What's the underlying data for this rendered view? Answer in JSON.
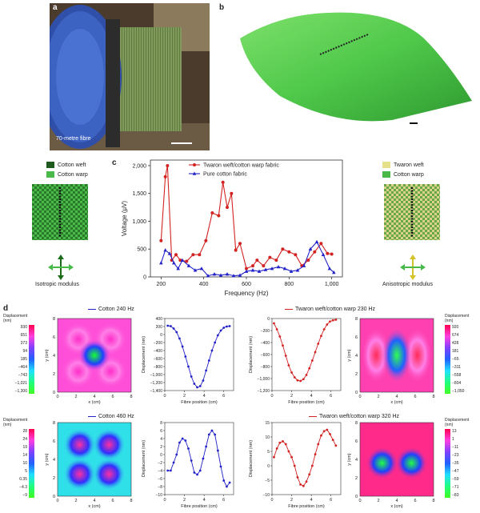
{
  "panels": {
    "a": {
      "label": "a",
      "fibre_length_text": "70-metre fibre"
    },
    "b": {
      "label": "b"
    },
    "c": {
      "label": "c",
      "left_legend": [
        {
          "label": "Cotton weft",
          "color": "#1e5a1e"
        },
        {
          "label": "Cotton warp",
          "color": "#49b94a"
        }
      ],
      "right_legend": [
        {
          "label": "Twaron weft",
          "color": "#e5e08a"
        },
        {
          "label": "Cotton warp",
          "color": "#49b94a"
        }
      ],
      "left_caption": "Isotropic modulus",
      "right_caption": "Anisotropic modulus"
    },
    "d": {
      "label": "d",
      "displacement_label_top": "Displacement",
      "displacement_label_bottom": "(nm)",
      "titles": {
        "cotton240": "Cotton 240 Hz",
        "twaron230": "Twaron weft/cotton warp 230 Hz",
        "cotton460": "Cotton 460 Hz",
        "twaron320": "Twaron weft/cotton warp 320 Hz"
      },
      "colorbars": {
        "tl": [
          "930",
          "651",
          "373",
          "94",
          "185",
          "−464",
          "−743",
          "−1,021",
          "−1,300"
        ],
        "tr": [
          "920",
          "674",
          "428",
          "181",
          "−65",
          "−311",
          "−558",
          "−804",
          "−1,050"
        ],
        "bl": [
          "28",
          "24",
          "19",
          "14",
          "10",
          "5",
          "0.35",
          "−4.3",
          "−9"
        ],
        "br": [
          "13",
          "1",
          "−11",
          "−23",
          "−35",
          "−47",
          "−59",
          "−71",
          "−83"
        ]
      },
      "map_axes": {
        "xlabel": "x (cm)",
        "ylabel": "y (cm)",
        "xticks": [
          "0",
          "2",
          "4",
          "6",
          "8"
        ],
        "yticks": [
          "0",
          "2",
          "4",
          "6",
          "8"
        ]
      },
      "line_axes": {
        "xlabel": "Fibre position (cm)",
        "ylabel": "Displacement (nm)",
        "xticks": [
          "0",
          "2",
          "4",
          "6"
        ]
      }
    }
  },
  "chart_data": [
    {
      "type": "line",
      "xlabel": "Frequency (Hz)",
      "ylabel": "Voltage (μV)",
      "xlim": [
        150,
        1050
      ],
      "ylim": [
        0,
        2100
      ],
      "xticks": [
        200,
        400,
        600,
        800,
        1000
      ],
      "xtick_labels": [
        "200",
        "400",
        "600",
        "800",
        "1,000"
      ],
      "yticks": [
        0,
        500,
        1000,
        1500,
        2000
      ],
      "ytick_labels": [
        "0",
        "500",
        "1,000",
        "1,500",
        "2,000"
      ],
      "legend_position": "top-center",
      "series": [
        {
          "name": "Twaron weft/cotton warp fabric",
          "color": "#d32222",
          "marker": "circle",
          "x": [
            200,
            220,
            230,
            250,
            270,
            290,
            320,
            350,
            380,
            410,
            440,
            470,
            490,
            510,
            530,
            550,
            570,
            600,
            630,
            650,
            680,
            710,
            740,
            770,
            800,
            830,
            860,
            890,
            920,
            950,
            980,
            1000
          ],
          "y": [
            650,
            1800,
            2000,
            300,
            400,
            300,
            280,
            400,
            400,
            650,
            1150,
            1100,
            1700,
            1250,
            1500,
            480,
            600,
            150,
            200,
            300,
            200,
            350,
            300,
            500,
            450,
            400,
            200,
            300,
            450,
            600,
            420,
            410
          ]
        },
        {
          "name": "Pure cotton fabric",
          "color": "#2222c8",
          "marker": "triangle",
          "x": [
            200,
            220,
            240,
            260,
            280,
            300,
            330,
            360,
            390,
            420,
            450,
            480,
            510,
            540,
            570,
            600,
            630,
            660,
            690,
            720,
            750,
            780,
            810,
            840,
            870,
            900,
            930,
            960,
            990,
            1010
          ],
          "y": [
            250,
            480,
            420,
            250,
            150,
            300,
            200,
            120,
            150,
            20,
            50,
            30,
            50,
            20,
            30,
            100,
            120,
            100,
            130,
            150,
            180,
            150,
            100,
            120,
            200,
            500,
            630,
            400,
            150,
            80
          ]
        }
      ]
    },
    {
      "type": "line",
      "title": "Cotton 240 Hz",
      "xlabel": "Fibre position (cm)",
      "ylabel": "Displacement (nm)",
      "xlim": [
        0,
        7
      ],
      "ylim": [
        -1400,
        400
      ],
      "yticks": [
        400,
        200,
        0,
        -200,
        -400,
        -600,
        -800,
        -1000,
        -1200,
        -1400
      ],
      "ytick_labels": [
        "400",
        "200",
        "0",
        "−200",
        "−400",
        "−600",
        "−800",
        "−1,000",
        "−1,200",
        "−1,400"
      ],
      "series": [
        {
          "color": "#2222c8",
          "x": [
            0.3,
            0.6,
            0.9,
            1.2,
            1.5,
            1.8,
            2.1,
            2.4,
            2.7,
            3.0,
            3.3,
            3.6,
            3.9,
            4.2,
            4.5,
            4.8,
            5.1,
            5.4,
            5.7,
            6.0,
            6.3,
            6.6
          ],
          "y": [
            220,
            210,
            150,
            60,
            -100,
            -300,
            -550,
            -800,
            -1050,
            -1230,
            -1320,
            -1290,
            -1150,
            -900,
            -650,
            -400,
            -200,
            -20,
            100,
            170,
            200,
            210
          ]
        }
      ]
    },
    {
      "type": "line",
      "title": "Twaron weft/cotton warp 230 Hz",
      "xlabel": "Fibre position (cm)",
      "ylabel": "Displacement (nm)",
      "xlim": [
        0,
        7
      ],
      "ylim": [
        -1200,
        0
      ],
      "yticks": [
        0,
        -200,
        -400,
        -600,
        -800,
        -1000,
        -1200
      ],
      "ytick_labels": [
        "0",
        "−200",
        "−400",
        "−600",
        "−800",
        "−1,000",
        "−1,200"
      ],
      "series": [
        {
          "color": "#d32222",
          "x": [
            0.2,
            0.5,
            0.8,
            1.1,
            1.4,
            1.7,
            2.0,
            2.3,
            2.6,
            2.9,
            3.2,
            3.5,
            3.8,
            4.1,
            4.4,
            4.7,
            5.0,
            5.3,
            5.6,
            5.9,
            6.2,
            6.5
          ],
          "y": [
            -80,
            -180,
            -300,
            -450,
            -620,
            -780,
            -900,
            -980,
            -1030,
            -1040,
            -1010,
            -940,
            -830,
            -700,
            -560,
            -420,
            -290,
            -180,
            -100,
            -50,
            -30,
            -20
          ]
        }
      ]
    },
    {
      "type": "line",
      "title": "Cotton 460 Hz",
      "xlabel": "Fibre position (cm)",
      "ylabel": "Displacement (nm)",
      "xlim": [
        0,
        7
      ],
      "ylim": [
        -10,
        8
      ],
      "yticks": [
        8,
        6,
        4,
        2,
        0,
        -2,
        -4,
        -6,
        -8,
        -10
      ],
      "ytick_labels": [
        "8",
        "6",
        "4",
        "2",
        "0",
        "−2",
        "−4",
        "−6",
        "−8",
        "−10"
      ],
      "series": [
        {
          "color": "#2222c8",
          "x": [
            0.3,
            0.6,
            0.9,
            1.2,
            1.5,
            1.8,
            2.1,
            2.4,
            2.7,
            3.0,
            3.3,
            3.6,
            3.9,
            4.2,
            4.5,
            4.8,
            5.1,
            5.4,
            5.7,
            6.0,
            6.3,
            6.6
          ],
          "y": [
            -4,
            -4,
            -2,
            0,
            3,
            4,
            3.5,
            1.5,
            -1.5,
            -4.5,
            -5,
            -4,
            -1,
            2,
            5,
            6,
            5,
            1,
            -3,
            -6.5,
            -8,
            -7
          ]
        }
      ]
    },
    {
      "type": "line",
      "title": "Twaron weft/cotton warp 320 Hz",
      "xlabel": "Fibre position (cm)",
      "ylabel": "Displacement (nm)",
      "xlim": [
        0,
        7
      ],
      "ylim": [
        -10,
        15
      ],
      "yticks": [
        15,
        10,
        5,
        0,
        -5,
        -10
      ],
      "ytick_labels": [
        "15",
        "10",
        "5",
        "0",
        "−5",
        "−10"
      ],
      "series": [
        {
          "color": "#d32222",
          "x": [
            0.2,
            0.5,
            0.8,
            1.1,
            1.4,
            1.7,
            2.0,
            2.3,
            2.6,
            2.9,
            3.2,
            3.5,
            3.8,
            4.1,
            4.4,
            4.7,
            5.0,
            5.3,
            5.6,
            5.9,
            6.2,
            6.5
          ],
          "y": [
            3,
            6,
            8,
            8.5,
            7.5,
            5,
            3,
            0,
            -4,
            -6.5,
            -7,
            -5.5,
            -3,
            0,
            4,
            7.5,
            10.5,
            12,
            12.5,
            11,
            9,
            7
          ]
        }
      ]
    }
  ]
}
